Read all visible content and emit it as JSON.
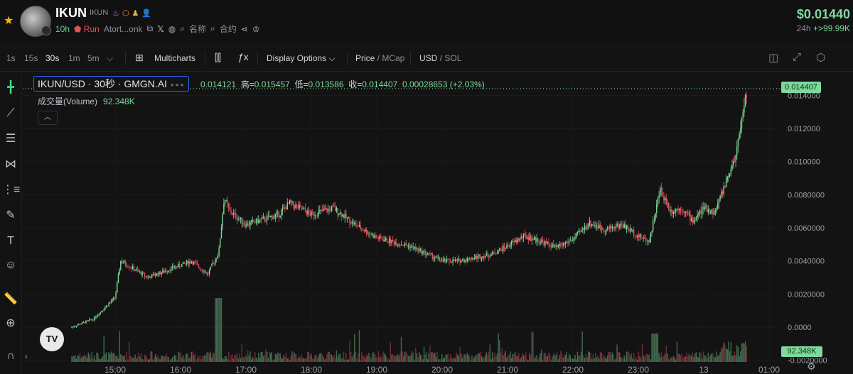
{
  "header": {
    "token_name": "IKUN",
    "token_symbol": "IKUN",
    "age": "10h",
    "run_label": "Run",
    "address": "Atort...onk",
    "name_search": "名称",
    "contract_search": "合约",
    "price": "$0.01440",
    "change_period": "24h",
    "change_value": "+>99.99K"
  },
  "toolbar": {
    "intervals": [
      "1s",
      "15s",
      "30s",
      "1m",
      "5m"
    ],
    "active_interval": "30s",
    "multicharts": "Multicharts",
    "display_options": "Display Options",
    "price_label": "Price",
    "mcap_label": "MCap",
    "usd_label": "USD",
    "sol_label": "SOL"
  },
  "legend": {
    "title": "IKUN/USD · 30秒 · GMGN.AI",
    "dots": "∘∘∘",
    "open_label": "",
    "open": "0.014121",
    "high_label": "高=",
    "high": "0.015457",
    "low_label": "低=",
    "low": "0.013586",
    "close_label": "收=",
    "close": "0.014407",
    "change": "0.00028653 (+2.03%)",
    "volume_label": "成交量(Volume)",
    "volume_value": "92.348K"
  },
  "last_price_tag": "0.014407",
  "volume_tag": "92.348K",
  "colors": {
    "up": "#7ed99b",
    "down": "#e0525c",
    "background": "#131313",
    "accent": "#2962ff"
  },
  "chart_data": {
    "type": "candlestick",
    "title": "IKUN/USD · 30秒 · GMGN.AI",
    "xlabel": "",
    "ylabel": "",
    "x_tick_labels": [
      "15:00",
      "16:00",
      "17:00",
      "18:00",
      "19:00",
      "20:00",
      "21:00",
      "22:00",
      "23:00",
      "13",
      "01:00"
    ],
    "y_tick_labels": [
      "0.014000",
      "0.012000",
      "0.010000",
      "0.0080000",
      "0.0060000",
      "0.0040000",
      "0.0020000",
      "0.0000",
      "-0.0020000"
    ],
    "ylim": [
      -0.0021,
      0.0153
    ],
    "price_path_times": [
      "14:20",
      "14:40",
      "15:00",
      "15:05",
      "15:30",
      "15:50",
      "16:10",
      "16:25",
      "16:35",
      "16:40",
      "16:45",
      "17:00",
      "17:30",
      "17:40",
      "18:00",
      "18:20",
      "18:40",
      "19:00",
      "19:30",
      "20:00",
      "20:15",
      "20:45",
      "21:00",
      "21:15",
      "21:30",
      "21:45",
      "22:00",
      "22:15",
      "22:30",
      "22:45",
      "23:00",
      "23:10",
      "23:20",
      "23:30",
      "23:40",
      "23:50",
      "00:00",
      "00:10",
      "00:20",
      "00:30",
      "00:35",
      "00:40"
    ],
    "price_path_values": [
      0.0,
      0.0005,
      0.0018,
      0.004,
      0.003,
      0.0035,
      0.004,
      0.0032,
      0.0045,
      0.0078,
      0.007,
      0.0062,
      0.0068,
      0.0075,
      0.0068,
      0.0072,
      0.0062,
      0.0054,
      0.0049,
      0.004,
      0.004,
      0.0044,
      0.0049,
      0.0055,
      0.0052,
      0.0048,
      0.0053,
      0.0063,
      0.0059,
      0.0062,
      0.0055,
      0.0052,
      0.0083,
      0.007,
      0.0072,
      0.0064,
      0.0072,
      0.0069,
      0.0087,
      0.0105,
      0.0128,
      0.0144
    ],
    "last_price": 0.014407,
    "volume_last": "92.348K"
  }
}
